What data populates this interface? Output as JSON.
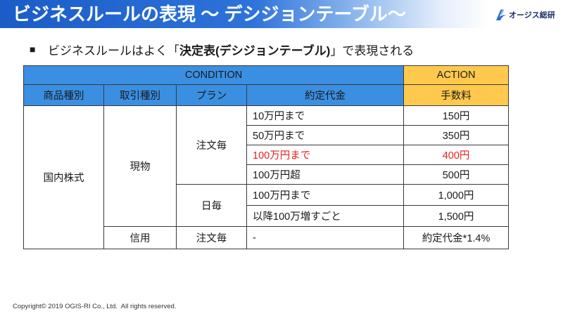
{
  "slide": {
    "title": "ビジネスルールの表現 ～ デシジョンテーブル～",
    "logo": {
      "icon": "ogis-swoosh-icon",
      "text": "オージス総研"
    }
  },
  "bullet": {
    "marker": "■",
    "text_before": "ビジネスルールはよく「",
    "text_bold": "決定表(デシジョンテーブル)",
    "text_after": "」で表現される"
  },
  "decision_table": {
    "group_headers": {
      "condition": "CONDITION",
      "action": "ACTION"
    },
    "columns": [
      "商品種別",
      "取引種別",
      "プラン",
      "約定代金",
      "手数料"
    ],
    "product": "国内株式",
    "trade_types": [
      {
        "name": "現物",
        "plans": [
          {
            "name": "注文毎",
            "rules": [
              {
                "amount": "10万円まで",
                "fee": "150円"
              },
              {
                "amount": "50万円まで",
                "fee": "350円"
              },
              {
                "amount": "100万円まで",
                "fee": "400円",
                "highlighted": true
              },
              {
                "amount": "100万円超",
                "fee": "500円"
              }
            ]
          },
          {
            "name": "日毎",
            "rules": [
              {
                "amount": "100万円まで",
                "fee": "1,000円"
              },
              {
                "amount": "以降100万増すごと",
                "fee": "1,500円"
              }
            ]
          }
        ]
      },
      {
        "name": "信用",
        "plans": [
          {
            "name": "注文毎",
            "rules": [
              {
                "amount": "-",
                "fee": "約定代金*1.4%"
              }
            ]
          }
        ]
      }
    ]
  },
  "footer": {
    "copyright": "Copyright© 2019 OGIS-RI Co., Ltd.  All rights reserved."
  },
  "colors": {
    "title_bar_start": "#1b5cc7",
    "title_bar_mid": "#2d73da",
    "condition_header": "#3a8fe2",
    "action_header": "#ffc94d",
    "highlight_text": "#e8211c",
    "logo_text": "#1c2f63",
    "logo_icon": "#2a6fd0"
  }
}
